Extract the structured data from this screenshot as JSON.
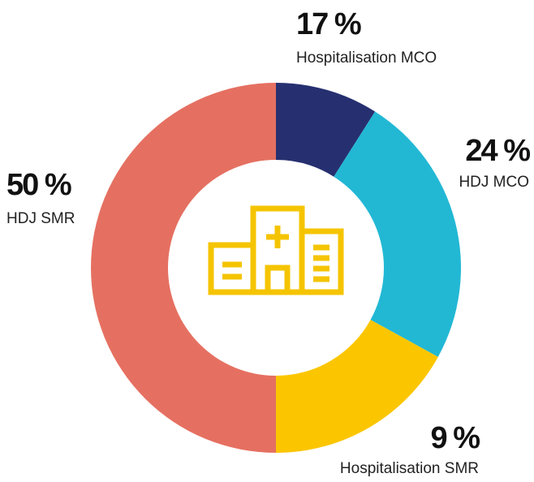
{
  "chart_data": {
    "type": "donut",
    "categories": [
      "Hospitalisation SMR",
      "HDJ MCO",
      "Hospitalisation MCO",
      "HDJ SMR"
    ],
    "values": [
      9,
      24,
      17,
      50
    ],
    "value_labels": [
      "9 %",
      "24 %",
      "17 %",
      "50 %"
    ],
    "colors": [
      "#263070",
      "#22b8d4",
      "#fbc600",
      "#e57061"
    ]
  }
}
